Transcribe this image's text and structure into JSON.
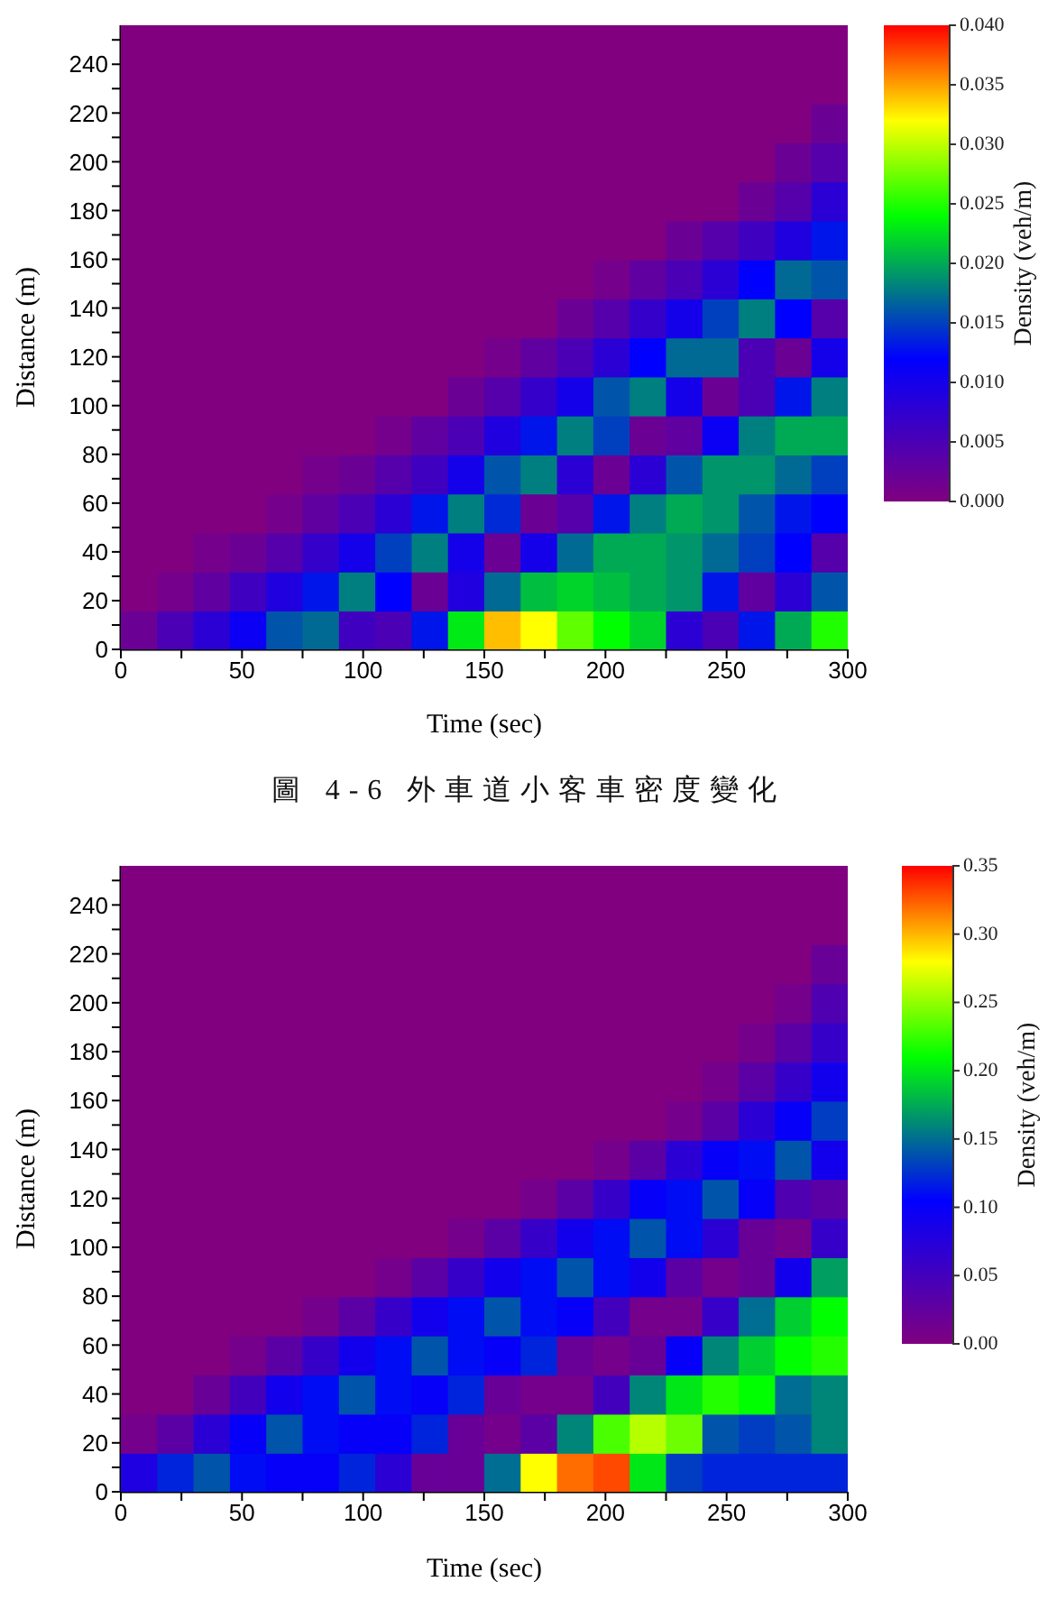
{
  "chart_data": [
    {
      "type": "scatter",
      "marker": "square",
      "xlabel": "Time (sec)",
      "ylabel": "Distance (m)",
      "clabel": "Density (veh/m)",
      "annotations": [
        "圖 4-6 外車道小客車密度變化"
      ],
      "xlim": [
        0,
        300
      ],
      "xticks": [
        0,
        {
          "value": 25,
          "label": null
        },
        50,
        {
          "value": 75,
          "label": null
        },
        100,
        {
          "value": 125,
          "label": null
        },
        150,
        {
          "value": 175,
          "label": null
        },
        200,
        {
          "value": 225,
          "label": null
        },
        250,
        {
          "value": 275,
          "label": null
        },
        300
      ],
      "ylim": [
        0,
        256
      ],
      "yticks": [
        0,
        {
          "value": 10,
          "label": null
        },
        20,
        {
          "value": 30,
          "label": null
        },
        40,
        {
          "value": 50,
          "label": null
        },
        60,
        {
          "value": 70,
          "label": null
        },
        80,
        {
          "value": 90,
          "label": null
        },
        100,
        {
          "value": 110,
          "label": null
        },
        120,
        {
          "value": 130,
          "label": null
        },
        140,
        {
          "value": 150,
          "label": null
        },
        160,
        {
          "value": 170,
          "label": null
        },
        180,
        {
          "value": 190,
          "label": null
        },
        200,
        {
          "value": 210,
          "label": null
        },
        220,
        {
          "value": 230,
          "label": null
        },
        240,
        {
          "value": 250,
          "label": null
        }
      ],
      "clim": [
        0,
        0.04
      ],
      "cticks": [
        {
          "value": 0,
          "label": "0.000"
        },
        {
          "value": 0.005,
          "label": "0.005"
        },
        {
          "value": 0.01,
          "label": "0.010"
        },
        {
          "value": 0.015,
          "label": "0.015"
        },
        {
          "value": 0.02,
          "label": "0.020"
        },
        {
          "value": 0.025,
          "label": "0.025"
        },
        {
          "value": 0.03,
          "label": "0.030"
        },
        {
          "value": 0.035,
          "label": "0.035"
        },
        {
          "value": 0.04,
          "label": "0.040"
        }
      ],
      "x": [
        7.5,
        22.5,
        37.5,
        52.5,
        67.5,
        82.5,
        97.5,
        112.5,
        127.5,
        142.5,
        157.5,
        172.5,
        187.5,
        202.5,
        217.5,
        232.5,
        247.5,
        262.5,
        277.5,
        292.5,
        7.5,
        22.5,
        37.5,
        52.5,
        67.5,
        82.5,
        97.5,
        112.5,
        127.5,
        142.5,
        157.5,
        172.5,
        187.5,
        202.5,
        217.5,
        232.5,
        247.5,
        262.5,
        277.5,
        292.5,
        7.5,
        22.5,
        37.5,
        52.5,
        67.5,
        82.5,
        97.5,
        112.5,
        127.5,
        142.5,
        157.5,
        172.5,
        187.5,
        202.5,
        217.5,
        232.5,
        247.5,
        262.5,
        277.5,
        292.5,
        7.5,
        22.5,
        37.5,
        52.5,
        67.5,
        82.5,
        97.5,
        112.5,
        127.5,
        142.5,
        157.5,
        172.5,
        187.5,
        202.5,
        217.5,
        232.5,
        247.5,
        262.5,
        277.5,
        292.5,
        7.5,
        22.5,
        37.5,
        52.5,
        67.5,
        82.5,
        97.5,
        112.5,
        127.5,
        142.5,
        157.5,
        172.5,
        187.5,
        202.5,
        217.5,
        232.5,
        247.5,
        262.5,
        277.5,
        292.5,
        7.5,
        22.5,
        37.5,
        52.5,
        67.5,
        82.5,
        97.5,
        112.5,
        127.5,
        142.5,
        157.5,
        172.5,
        187.5,
        202.5,
        217.5,
        232.5,
        247.5,
        262.5,
        277.5,
        292.5,
        7.5,
        22.5,
        37.5,
        52.5,
        67.5,
        82.5,
        97.5,
        112.5,
        127.5,
        142.5,
        157.5,
        172.5,
        187.5,
        202.5,
        217.5,
        232.5,
        247.5,
        262.5,
        277.5,
        292.5,
        7.5,
        22.5,
        37.5,
        52.5,
        67.5,
        82.5,
        97.5,
        112.5,
        127.5,
        142.5,
        157.5,
        172.5,
        187.5,
        202.5,
        217.5,
        232.5,
        247.5,
        262.5,
        277.5,
        292.5,
        7.5,
        22.5,
        37.5,
        52.5,
        67.5,
        82.5,
        97.5,
        112.5,
        127.5,
        142.5,
        157.5,
        172.5,
        187.5,
        202.5,
        217.5,
        232.5,
        247.5,
        262.5,
        277.5,
        292.5,
        7.5,
        22.5,
        37.5,
        52.5,
        67.5,
        82.5,
        97.5,
        112.5,
        127.5,
        142.5,
        157.5,
        172.5,
        187.5,
        202.5,
        217.5,
        232.5,
        247.5,
        262.5,
        277.5,
        292.5,
        7.5,
        22.5,
        37.5,
        52.5,
        67.5,
        82.5,
        97.5,
        112.5,
        127.5,
        142.5,
        157.5,
        172.5,
        187.5,
        202.5,
        217.5,
        232.5,
        247.5,
        262.5,
        277.5,
        292.5,
        7.5,
        22.5,
        37.5,
        52.5,
        67.5,
        82.5,
        97.5,
        112.5,
        127.5,
        142.5,
        157.5,
        172.5,
        187.5,
        202.5,
        217.5,
        232.5,
        247.5,
        262.5,
        277.5,
        292.5,
        7.5,
        22.5,
        37.5,
        52.5,
        67.5,
        82.5,
        97.5,
        112.5,
        127.5,
        142.5,
        157.5,
        172.5,
        187.5,
        202.5,
        217.5,
        232.5,
        247.5,
        262.5,
        277.5,
        292.5,
        7.5,
        22.5,
        37.5,
        52.5,
        67.5,
        82.5,
        97.5,
        112.5,
        127.5,
        142.5,
        157.5,
        172.5,
        187.5,
        202.5,
        217.5,
        232.5,
        247.5,
        262.5,
        277.5,
        292.5,
        7.5,
        22.5,
        37.5,
        52.5,
        67.5,
        82.5,
        97.5,
        112.5,
        127.5,
        142.5,
        157.5,
        172.5,
        187.5,
        202.5,
        217.5,
        232.5,
        247.5,
        262.5,
        277.5,
        292.5,
        7.5,
        22.5,
        37.5,
        52.5,
        67.5,
        82.5,
        97.5,
        112.5,
        127.5,
        142.5,
        157.5,
        172.5,
        187.5,
        202.5,
        217.5,
        232.5,
        247.5,
        262.5,
        277.5,
        292.5
      ],
      "values": [
        8,
        8,
        8,
        8,
        8,
        8,
        8,
        8,
        8,
        8,
        8,
        8,
        8,
        8,
        8,
        8,
        8,
        8,
        8,
        8,
        24,
        24,
        24,
        24,
        24,
        24,
        24,
        24,
        24,
        24,
        24,
        24,
        24,
        24,
        24,
        24,
        24,
        24,
        24,
        24,
        40,
        40,
        40,
        40,
        40,
        40,
        40,
        40,
        40,
        40,
        40,
        40,
        40,
        40,
        40,
        40,
        40,
        40,
        40,
        40,
        56,
        56,
        56,
        56,
        56,
        56,
        56,
        56,
        56,
        56,
        56,
        56,
        56,
        56,
        56,
        56,
        56,
        56,
        56,
        56,
        72,
        72,
        72,
        72,
        72,
        72,
        72,
        72,
        72,
        72,
        72,
        72,
        72,
        72,
        72,
        72,
        72,
        72,
        72,
        72,
        88,
        88,
        88,
        88,
        88,
        88,
        88,
        88,
        88,
        88,
        88,
        88,
        88,
        88,
        88,
        88,
        88,
        88,
        88,
        88,
        104,
        104,
        104,
        104,
        104,
        104,
        104,
        104,
        104,
        104,
        104,
        104,
        104,
        104,
        104,
        104,
        104,
        104,
        104,
        104,
        120,
        120,
        120,
        120,
        120,
        120,
        120,
        120,
        120,
        120,
        120,
        120,
        120,
        120,
        120,
        120,
        120,
        120,
        120,
        120,
        136,
        136,
        136,
        136,
        136,
        136,
        136,
        136,
        136,
        136,
        136,
        136,
        136,
        136,
        136,
        136,
        136,
        136,
        136,
        136,
        152,
        152,
        152,
        152,
        152,
        152,
        152,
        152,
        152,
        152,
        152,
        152,
        152,
        152,
        152,
        152,
        152,
        152,
        152,
        152,
        168,
        168,
        168,
        168,
        168,
        168,
        168,
        168,
        168,
        168,
        168,
        168,
        168,
        168,
        168,
        168,
        168,
        168,
        168,
        168,
        184,
        184,
        184,
        184,
        184,
        184,
        184,
        184,
        184,
        184,
        184,
        184,
        184,
        184,
        184,
        184,
        184,
        184,
        184,
        184,
        200,
        200,
        200,
        200,
        200,
        200,
        200,
        200,
        200,
        200,
        200,
        200,
        200,
        200,
        200,
        200,
        200,
        200,
        200,
        200,
        216,
        216,
        216,
        216,
        216,
        216,
        216,
        216,
        216,
        216,
        216,
        216,
        216,
        216,
        216,
        216,
        216,
        216,
        216,
        216,
        232,
        232,
        232,
        232,
        232,
        232,
        232,
        232,
        232,
        232,
        232,
        232,
        232,
        232,
        232,
        232,
        232,
        232,
        232,
        232,
        248,
        248,
        248,
        248,
        248,
        248,
        248,
        248,
        248,
        248,
        248,
        248,
        248,
        248,
        248,
        248,
        248,
        248,
        248,
        248
      ],
      "cvalues": [
        0.002,
        0.005,
        0.008,
        0.011,
        0.016,
        0.017,
        0.006,
        0.005,
        0.013,
        0.023,
        0.034,
        0.032,
        0.027,
        0.024,
        0.022,
        0.008,
        0.005,
        0.013,
        0.02,
        0.025,
        0,
        0.001,
        0.003,
        0.006,
        0.009,
        0.013,
        0.018,
        0.012,
        0.002,
        0.009,
        0.017,
        0.021,
        0.022,
        0.021,
        0.02,
        0.019,
        0.013,
        0.003,
        0.008,
        0.016,
        0,
        0,
        0.001,
        0.002,
        0.004,
        0.007,
        0.01,
        0.015,
        0.018,
        0.01,
        0.002,
        0.01,
        0.017,
        0.02,
        0.02,
        0.019,
        0.017,
        0.015,
        0.012,
        0.004,
        0,
        0,
        0,
        0,
        0.001,
        0.003,
        0.005,
        0.008,
        0.013,
        0.018,
        0.014,
        0.002,
        0.004,
        0.013,
        0.018,
        0.02,
        0.019,
        0.016,
        0.013,
        0.012,
        0,
        0,
        0,
        0,
        0,
        0.001,
        0.002,
        0.004,
        0.006,
        0.01,
        0.016,
        0.018,
        0.008,
        0.002,
        0.008,
        0.016,
        0.019,
        0.019,
        0.017,
        0.015,
        0,
        0,
        0,
        0,
        0,
        0,
        0,
        0.001,
        0.003,
        0.005,
        0.009,
        0.013,
        0.018,
        0.015,
        0.002,
        0.003,
        0.011,
        0.018,
        0.02,
        0.02,
        0,
        0,
        0,
        0,
        0,
        0,
        0,
        0,
        0,
        0.002,
        0.004,
        0.007,
        0.01,
        0.016,
        0.018,
        0.01,
        0.002,
        0.005,
        0.013,
        0.018,
        0,
        0,
        0,
        0,
        0,
        0,
        0,
        0,
        0,
        0,
        0.001,
        0.003,
        0.005,
        0.008,
        0.012,
        0.017,
        0.017,
        0.005,
        0.002,
        0.01,
        0,
        0,
        0,
        0,
        0,
        0,
        0,
        0,
        0,
        0,
        0,
        0,
        0.002,
        0.004,
        0.007,
        0.01,
        0.015,
        0.018,
        0.012,
        0.004,
        0,
        0,
        0,
        0,
        0,
        0,
        0,
        0,
        0,
        0,
        0,
        0,
        0,
        0.001,
        0.003,
        0.005,
        0.008,
        0.012,
        0.017,
        0.016,
        0,
        0,
        0,
        0,
        0,
        0,
        0,
        0,
        0,
        0,
        0,
        0,
        0,
        0,
        0,
        0.002,
        0.004,
        0.006,
        0.009,
        0.013,
        0,
        0,
        0,
        0,
        0,
        0,
        0,
        0,
        0,
        0,
        0,
        0,
        0,
        0,
        0,
        0,
        0,
        0.002,
        0.004,
        0.008,
        0,
        0,
        0,
        0,
        0,
        0,
        0,
        0,
        0,
        0,
        0,
        0,
        0,
        0,
        0,
        0,
        0,
        0,
        0.002,
        0.004,
        0,
        0,
        0,
        0,
        0,
        0,
        0,
        0,
        0,
        0,
        0,
        0,
        0,
        0,
        0,
        0,
        0,
        0,
        0,
        0.002,
        0,
        0,
        0,
        0,
        0,
        0,
        0,
        0,
        0,
        0,
        0,
        0,
        0,
        0,
        0,
        0,
        0,
        0,
        0,
        0,
        0,
        0,
        0,
        0,
        0,
        0,
        0,
        0,
        0,
        0,
        0,
        0,
        0,
        0,
        0,
        0,
        0,
        0,
        0,
        0
      ]
    },
    {
      "type": "scatter",
      "marker": "square",
      "xlabel": "Time (sec)",
      "ylabel": "Distance (m)",
      "clabel": "Density (veh/m)",
      "xlim": [
        0,
        300
      ],
      "xticks": [
        0,
        {
          "value": 25,
          "label": null
        },
        50,
        {
          "value": 75,
          "label": null
        },
        100,
        {
          "value": 125,
          "label": null
        },
        150,
        {
          "value": 175,
          "label": null
        },
        200,
        {
          "value": 225,
          "label": null
        },
        250,
        {
          "value": 275,
          "label": null
        },
        300
      ],
      "ylim": [
        0,
        256
      ],
      "yticks": [
        0,
        {
          "value": 10,
          "label": null
        },
        20,
        {
          "value": 30,
          "label": null
        },
        40,
        {
          "value": 50,
          "label": null
        },
        60,
        {
          "value": 70,
          "label": null
        },
        80,
        {
          "value": 90,
          "label": null
        },
        100,
        {
          "value": 110,
          "label": null
        },
        120,
        {
          "value": 130,
          "label": null
        },
        140,
        {
          "value": 150,
          "label": null
        },
        160,
        {
          "value": 170,
          "label": null
        },
        180,
        {
          "value": 190,
          "label": null
        },
        200,
        {
          "value": 210,
          "label": null
        },
        220,
        {
          "value": 230,
          "label": null
        },
        240,
        {
          "value": 250,
          "label": null
        }
      ],
      "clim": [
        0,
        0.35
      ],
      "cticks": [
        {
          "value": 0,
          "label": "0.00"
        },
        {
          "value": 0.05,
          "label": "0.05"
        },
        {
          "value": 0.1,
          "label": "0.10"
        },
        {
          "value": 0.15,
          "label": "0.15"
        },
        {
          "value": 0.2,
          "label": "0.20"
        },
        {
          "value": 0.25,
          "label": "0.25"
        },
        {
          "value": 0.3,
          "label": "0.30"
        },
        {
          "value": 0.35,
          "label": "0.35"
        }
      ],
      "x": [
        7.5,
        22.5,
        37.5,
        52.5,
        67.5,
        82.5,
        97.5,
        112.5,
        127.5,
        142.5,
        157.5,
        172.5,
        187.5,
        202.5,
        217.5,
        232.5,
        247.5,
        262.5,
        277.5,
        292.5,
        7.5,
        22.5,
        37.5,
        52.5,
        67.5,
        82.5,
        97.5,
        112.5,
        127.5,
        142.5,
        157.5,
        172.5,
        187.5,
        202.5,
        217.5,
        232.5,
        247.5,
        262.5,
        277.5,
        292.5,
        7.5,
        22.5,
        37.5,
        52.5,
        67.5,
        82.5,
        97.5,
        112.5,
        127.5,
        142.5,
        157.5,
        172.5,
        187.5,
        202.5,
        217.5,
        232.5,
        247.5,
        262.5,
        277.5,
        292.5,
        7.5,
        22.5,
        37.5,
        52.5,
        67.5,
        82.5,
        97.5,
        112.5,
        127.5,
        142.5,
        157.5,
        172.5,
        187.5,
        202.5,
        217.5,
        232.5,
        247.5,
        262.5,
        277.5,
        292.5,
        7.5,
        22.5,
        37.5,
        52.5,
        67.5,
        82.5,
        97.5,
        112.5,
        127.5,
        142.5,
        157.5,
        172.5,
        187.5,
        202.5,
        217.5,
        232.5,
        247.5,
        262.5,
        277.5,
        292.5,
        7.5,
        22.5,
        37.5,
        52.5,
        67.5,
        82.5,
        97.5,
        112.5,
        127.5,
        142.5,
        157.5,
        172.5,
        187.5,
        202.5,
        217.5,
        232.5,
        247.5,
        262.5,
        277.5,
        292.5,
        7.5,
        22.5,
        37.5,
        52.5,
        67.5,
        82.5,
        97.5,
        112.5,
        127.5,
        142.5,
        157.5,
        172.5,
        187.5,
        202.5,
        217.5,
        232.5,
        247.5,
        262.5,
        277.5,
        292.5,
        7.5,
        22.5,
        37.5,
        52.5,
        67.5,
        82.5,
        97.5,
        112.5,
        127.5,
        142.5,
        157.5,
        172.5,
        187.5,
        202.5,
        217.5,
        232.5,
        247.5,
        262.5,
        277.5,
        292.5,
        7.5,
        22.5,
        37.5,
        52.5,
        67.5,
        82.5,
        97.5,
        112.5,
        127.5,
        142.5,
        157.5,
        172.5,
        187.5,
        202.5,
        217.5,
        232.5,
        247.5,
        262.5,
        277.5,
        292.5,
        7.5,
        22.5,
        37.5,
        52.5,
        67.5,
        82.5,
        97.5,
        112.5,
        127.5,
        142.5,
        157.5,
        172.5,
        187.5,
        202.5,
        217.5,
        232.5,
        247.5,
        262.5,
        277.5,
        292.5,
        7.5,
        22.5,
        37.5,
        52.5,
        67.5,
        82.5,
        97.5,
        112.5,
        127.5,
        142.5,
        157.5,
        172.5,
        187.5,
        202.5,
        217.5,
        232.5,
        247.5,
        262.5,
        277.5,
        292.5,
        7.5,
        22.5,
        37.5,
        52.5,
        67.5,
        82.5,
        97.5,
        112.5,
        127.5,
        142.5,
        157.5,
        172.5,
        187.5,
        202.5,
        217.5,
        232.5,
        247.5,
        262.5,
        277.5,
        292.5,
        7.5,
        22.5,
        37.5,
        52.5,
        67.5,
        82.5,
        97.5,
        112.5,
        127.5,
        142.5,
        157.5,
        172.5,
        187.5,
        202.5,
        217.5,
        232.5,
        247.5,
        262.5,
        277.5,
        292.5,
        7.5,
        22.5,
        37.5,
        52.5,
        67.5,
        82.5,
        97.5,
        112.5,
        127.5,
        142.5,
        157.5,
        172.5,
        187.5,
        202.5,
        217.5,
        232.5,
        247.5,
        262.5,
        277.5,
        292.5,
        7.5,
        22.5,
        37.5,
        52.5,
        67.5,
        82.5,
        97.5,
        112.5,
        127.5,
        142.5,
        157.5,
        172.5,
        187.5,
        202.5,
        217.5,
        232.5,
        247.5,
        262.5,
        277.5,
        292.5,
        7.5,
        22.5,
        37.5,
        52.5,
        67.5,
        82.5,
        97.5,
        112.5,
        127.5,
        142.5,
        157.5,
        172.5,
        187.5,
        202.5,
        217.5,
        232.5,
        247.5,
        262.5,
        277.5,
        292.5
      ],
      "values": [
        8,
        8,
        8,
        8,
        8,
        8,
        8,
        8,
        8,
        8,
        8,
        8,
        8,
        8,
        8,
        8,
        8,
        8,
        8,
        8,
        24,
        24,
        24,
        24,
        24,
        24,
        24,
        24,
        24,
        24,
        24,
        24,
        24,
        24,
        24,
        24,
        24,
        24,
        24,
        24,
        40,
        40,
        40,
        40,
        40,
        40,
        40,
        40,
        40,
        40,
        40,
        40,
        40,
        40,
        40,
        40,
        40,
        40,
        40,
        40,
        56,
        56,
        56,
        56,
        56,
        56,
        56,
        56,
        56,
        56,
        56,
        56,
        56,
        56,
        56,
        56,
        56,
        56,
        56,
        56,
        72,
        72,
        72,
        72,
        72,
        72,
        72,
        72,
        72,
        72,
        72,
        72,
        72,
        72,
        72,
        72,
        72,
        72,
        72,
        72,
        88,
        88,
        88,
        88,
        88,
        88,
        88,
        88,
        88,
        88,
        88,
        88,
        88,
        88,
        88,
        88,
        88,
        88,
        88,
        88,
        104,
        104,
        104,
        104,
        104,
        104,
        104,
        104,
        104,
        104,
        104,
        104,
        104,
        104,
        104,
        104,
        104,
        104,
        104,
        104,
        120,
        120,
        120,
        120,
        120,
        120,
        120,
        120,
        120,
        120,
        120,
        120,
        120,
        120,
        120,
        120,
        120,
        120,
        120,
        120,
        136,
        136,
        136,
        136,
        136,
        136,
        136,
        136,
        136,
        136,
        136,
        136,
        136,
        136,
        136,
        136,
        136,
        136,
        136,
        136,
        152,
        152,
        152,
        152,
        152,
        152,
        152,
        152,
        152,
        152,
        152,
        152,
        152,
        152,
        152,
        152,
        152,
        152,
        152,
        152,
        168,
        168,
        168,
        168,
        168,
        168,
        168,
        168,
        168,
        168,
        168,
        168,
        168,
        168,
        168,
        168,
        168,
        168,
        168,
        168,
        184,
        184,
        184,
        184,
        184,
        184,
        184,
        184,
        184,
        184,
        184,
        184,
        184,
        184,
        184,
        184,
        184,
        184,
        184,
        184,
        200,
        200,
        200,
        200,
        200,
        200,
        200,
        200,
        200,
        200,
        200,
        200,
        200,
        200,
        200,
        200,
        200,
        200,
        200,
        200,
        216,
        216,
        216,
        216,
        216,
        216,
        216,
        216,
        216,
        216,
        216,
        216,
        216,
        216,
        216,
        216,
        216,
        216,
        216,
        216,
        232,
        232,
        232,
        232,
        232,
        232,
        232,
        232,
        232,
        232,
        232,
        232,
        232,
        232,
        232,
        232,
        232,
        232,
        232,
        232,
        248,
        248,
        248,
        248,
        248,
        248,
        248,
        248,
        248,
        248,
        248,
        248,
        248,
        248,
        248,
        248,
        248,
        248,
        248,
        248
      ],
      "cvalues": [
        0.08,
        0.12,
        0.14,
        0.11,
        0.1,
        0.1,
        0.12,
        0.07,
        0.02,
        0.02,
        0.15,
        0.28,
        0.32,
        0.33,
        0.2,
        0.13,
        0.12,
        0.12,
        0.12,
        0.12,
        0.01,
        0.03,
        0.07,
        0.1,
        0.14,
        0.11,
        0.1,
        0.1,
        0.12,
        0.02,
        0.01,
        0.03,
        0.16,
        0.23,
        0.26,
        0.24,
        0.14,
        0.13,
        0.14,
        0.16,
        0,
        0,
        0.02,
        0.05,
        0.09,
        0.11,
        0.14,
        0.11,
        0.1,
        0.12,
        0.02,
        0.01,
        0.01,
        0.05,
        0.16,
        0.2,
        0.22,
        0.21,
        0.15,
        0.16,
        0,
        0,
        0,
        0.01,
        0.03,
        0.06,
        0.09,
        0.11,
        0.14,
        0.11,
        0.1,
        0.12,
        0.02,
        0.01,
        0.02,
        0.1,
        0.16,
        0.19,
        0.21,
        0.22,
        0,
        0,
        0,
        0,
        0,
        0.01,
        0.03,
        0.06,
        0.09,
        0.11,
        0.14,
        0.11,
        0.1,
        0.05,
        0.01,
        0.01,
        0.06,
        0.15,
        0.19,
        0.21,
        0,
        0,
        0,
        0,
        0,
        0,
        0,
        0.01,
        0.03,
        0.06,
        0.09,
        0.11,
        0.14,
        0.11,
        0.09,
        0.03,
        0.01,
        0.02,
        0.09,
        0.17,
        0,
        0,
        0,
        0,
        0,
        0,
        0,
        0,
        0,
        0.01,
        0.03,
        0.06,
        0.09,
        0.11,
        0.14,
        0.11,
        0.07,
        0.02,
        0.01,
        0.06,
        0,
        0,
        0,
        0,
        0,
        0,
        0,
        0,
        0,
        0,
        0,
        0.01,
        0.03,
        0.06,
        0.1,
        0.11,
        0.14,
        0.1,
        0.04,
        0.03,
        0,
        0,
        0,
        0,
        0,
        0,
        0,
        0,
        0,
        0,
        0,
        0,
        0,
        0.01,
        0.03,
        0.07,
        0.1,
        0.11,
        0.14,
        0.09,
        0,
        0,
        0,
        0,
        0,
        0,
        0,
        0,
        0,
        0,
        0,
        0,
        0,
        0,
        0,
        0.01,
        0.03,
        0.07,
        0.1,
        0.13,
        0,
        0,
        0,
        0,
        0,
        0,
        0,
        0,
        0,
        0,
        0,
        0,
        0,
        0,
        0,
        0,
        0.01,
        0.03,
        0.06,
        0.09,
        0,
        0,
        0,
        0,
        0,
        0,
        0,
        0,
        0,
        0,
        0,
        0,
        0,
        0,
        0,
        0,
        0,
        0.01,
        0.03,
        0.06,
        0,
        0,
        0,
        0,
        0,
        0,
        0,
        0,
        0,
        0,
        0,
        0,
        0,
        0,
        0,
        0,
        0,
        0,
        0.01,
        0.04,
        0,
        0,
        0,
        0,
        0,
        0,
        0,
        0,
        0,
        0,
        0,
        0,
        0,
        0,
        0,
        0,
        0,
        0,
        0,
        0.02,
        0,
        0,
        0,
        0,
        0,
        0,
        0,
        0,
        0,
        0,
        0,
        0,
        0,
        0,
        0,
        0,
        0,
        0,
        0,
        0,
        0,
        0,
        0,
        0,
        0,
        0,
        0,
        0,
        0,
        0,
        0,
        0,
        0,
        0,
        0,
        0,
        0,
        0,
        0,
        0
      ]
    }
  ]
}
